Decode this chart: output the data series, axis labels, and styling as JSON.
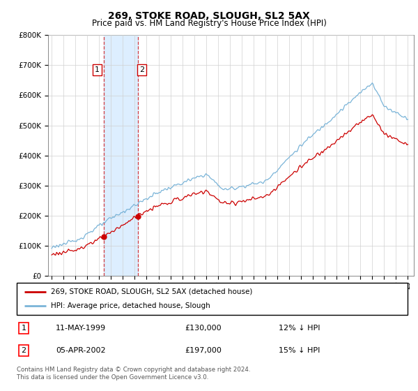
{
  "title": "269, STOKE ROAD, SLOUGH, SL2 5AX",
  "subtitle": "Price paid vs. HM Land Registry's House Price Index (HPI)",
  "sale1_date": "11-MAY-1999",
  "sale1_price": 130000,
  "sale1_label": "12% ↓ HPI",
  "sale2_date": "05-APR-2002",
  "sale2_price": 197000,
  "sale2_label": "15% ↓ HPI",
  "legend_line1": "269, STOKE ROAD, SLOUGH, SL2 5AX (detached house)",
  "legend_line2": "HPI: Average price, detached house, Slough",
  "footer": "Contains HM Land Registry data © Crown copyright and database right 2024.\nThis data is licensed under the Open Government Licence v3.0.",
  "hpi_color": "#7ab4d8",
  "price_color": "#cc0000",
  "shade_color": "#ddeeff",
  "ylim": [
    0,
    800000
  ],
  "yticks": [
    0,
    100000,
    200000,
    300000,
    400000,
    500000,
    600000,
    700000,
    800000
  ],
  "sale1_x_year": 1999.37,
  "sale2_x_year": 2002.25,
  "xlim_left": 1994.7,
  "xlim_right": 2025.5
}
